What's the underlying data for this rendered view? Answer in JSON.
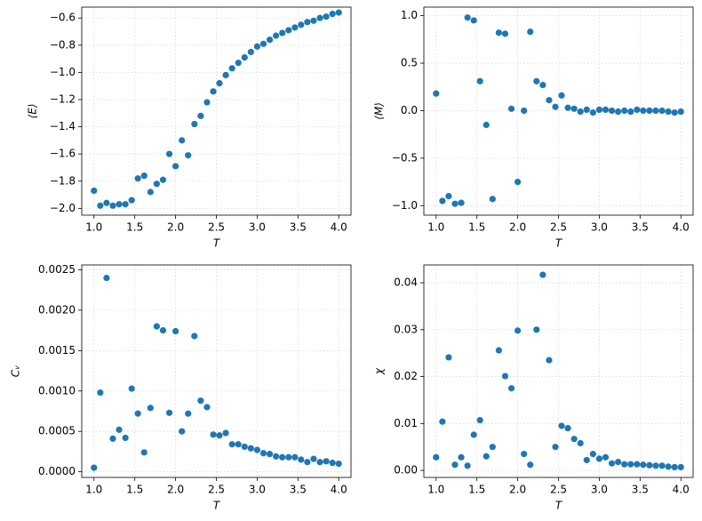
{
  "chart_data": [
    {
      "type": "scatter",
      "xlabel": "T",
      "ylabel": "⟨E⟩",
      "color": "#1f77b4",
      "grid": true,
      "x": [
        1.0,
        1.077,
        1.154,
        1.231,
        1.308,
        1.385,
        1.462,
        1.538,
        1.615,
        1.692,
        1.769,
        1.846,
        1.923,
        2.0,
        2.077,
        2.154,
        2.231,
        2.308,
        2.385,
        2.462,
        2.538,
        2.615,
        2.692,
        2.769,
        2.846,
        2.923,
        3.0,
        3.077,
        3.154,
        3.231,
        3.308,
        3.385,
        3.462,
        3.538,
        3.615,
        3.692,
        3.769,
        3.846,
        3.923,
        4.0
      ],
      "values": [
        -1.87,
        -1.98,
        -1.96,
        -1.98,
        -1.97,
        -1.97,
        -1.94,
        -1.78,
        -1.76,
        -1.88,
        -1.82,
        -1.79,
        -1.6,
        -1.69,
        -1.5,
        -1.61,
        -1.38,
        -1.32,
        -1.22,
        -1.14,
        -1.08,
        -1.02,
        -0.97,
        -0.93,
        -0.89,
        -0.85,
        -0.81,
        -0.79,
        -0.76,
        -0.73,
        -0.71,
        -0.69,
        -0.67,
        -0.65,
        -0.63,
        -0.62,
        -0.6,
        -0.59,
        -0.57,
        -0.56
      ],
      "xlim": [
        0.85,
        4.15
      ],
      "ylim": [
        -2.05,
        -0.52
      ],
      "xticks": [
        {
          "value": 1.0,
          "label": "1.0"
        },
        {
          "value": 1.5,
          "label": "1.5"
        },
        {
          "value": 2.0,
          "label": "2.0"
        },
        {
          "value": 2.5,
          "label": "2.5"
        },
        {
          "value": 3.0,
          "label": "3.0"
        },
        {
          "value": 3.5,
          "label": "3.5"
        },
        {
          "value": 4.0,
          "label": "4.0"
        }
      ],
      "yticks": [
        {
          "value": -2.0,
          "label": "−2.0"
        },
        {
          "value": -1.8,
          "label": "−1.8"
        },
        {
          "value": -1.6,
          "label": "−1.6"
        },
        {
          "value": -1.4,
          "label": "−1.4"
        },
        {
          "value": -1.2,
          "label": "−1.2"
        },
        {
          "value": -1.0,
          "label": "−1.0"
        },
        {
          "value": -0.8,
          "label": "−0.8"
        },
        {
          "value": -0.6,
          "label": "−0.6"
        }
      ]
    },
    {
      "type": "scatter",
      "xlabel": "T",
      "ylabel": "⟨M⟩",
      "color": "#1f77b4",
      "grid": true,
      "x": [
        1.0,
        1.077,
        1.154,
        1.231,
        1.308,
        1.385,
        1.462,
        1.538,
        1.615,
        1.692,
        1.769,
        1.846,
        1.923,
        2.0,
        2.077,
        2.154,
        2.231,
        2.308,
        2.385,
        2.462,
        2.538,
        2.615,
        2.692,
        2.769,
        2.846,
        2.923,
        3.0,
        3.077,
        3.154,
        3.231,
        3.308,
        3.385,
        3.462,
        3.538,
        3.615,
        3.692,
        3.769,
        3.846,
        3.923,
        4.0
      ],
      "values": [
        0.18,
        -0.95,
        -0.9,
        -0.98,
        -0.97,
        0.98,
        0.95,
        0.31,
        -0.15,
        -0.93,
        0.82,
        0.81,
        0.02,
        -0.75,
        0.0,
        0.83,
        0.31,
        0.27,
        0.11,
        0.04,
        0.16,
        0.03,
        0.02,
        -0.01,
        0.01,
        -0.02,
        0.01,
        0.01,
        0.0,
        -0.01,
        0.0,
        -0.01,
        0.01,
        0.0,
        0.0,
        0.0,
        0.0,
        -0.01,
        -0.02,
        -0.01
      ],
      "xlim": [
        0.85,
        4.15
      ],
      "ylim": [
        -1.1,
        1.09
      ],
      "xticks": [
        {
          "value": 1.0,
          "label": "1.0"
        },
        {
          "value": 1.5,
          "label": "1.5"
        },
        {
          "value": 2.0,
          "label": "2.0"
        },
        {
          "value": 2.5,
          "label": "2.5"
        },
        {
          "value": 3.0,
          "label": "3.0"
        },
        {
          "value": 3.5,
          "label": "3.5"
        },
        {
          "value": 4.0,
          "label": "4.0"
        }
      ],
      "yticks": [
        {
          "value": -1.0,
          "label": "−1.0"
        },
        {
          "value": -0.5,
          "label": "−0.5"
        },
        {
          "value": 0.0,
          "label": "0.0"
        },
        {
          "value": 0.5,
          "label": "0.5"
        },
        {
          "value": 1.0,
          "label": "1.0"
        }
      ]
    },
    {
      "type": "scatter",
      "xlabel": "T",
      "ylabel": "Cᵥ",
      "color": "#1f77b4",
      "grid": true,
      "x": [
        1.0,
        1.077,
        1.154,
        1.231,
        1.308,
        1.385,
        1.462,
        1.538,
        1.615,
        1.692,
        1.769,
        1.846,
        1.923,
        2.0,
        2.077,
        2.154,
        2.231,
        2.308,
        2.385,
        2.462,
        2.538,
        2.615,
        2.692,
        2.769,
        2.846,
        2.923,
        3.0,
        3.077,
        3.154,
        3.231,
        3.308,
        3.385,
        3.462,
        3.538,
        3.615,
        3.692,
        3.769,
        3.846,
        3.923,
        4.0
      ],
      "values": [
        5e-05,
        0.00098,
        0.0024,
        0.00041,
        0.00052,
        0.00042,
        0.00103,
        0.00072,
        0.00024,
        0.00079,
        0.0018,
        0.00175,
        0.00073,
        0.00174,
        0.0005,
        0.00072,
        0.00168,
        0.00088,
        0.0008,
        0.00046,
        0.00045,
        0.00048,
        0.00034,
        0.00034,
        0.00031,
        0.00029,
        0.00027,
        0.00023,
        0.00022,
        0.00019,
        0.00018,
        0.00018,
        0.00018,
        0.00015,
        0.00012,
        0.00016,
        0.00012,
        0.00013,
        0.00011,
        0.0001
      ],
      "xlim": [
        0.85,
        4.15
      ],
      "ylim": [
        -7e-05,
        0.00256
      ],
      "xticks": [
        {
          "value": 1.0,
          "label": "1.0"
        },
        {
          "value": 1.5,
          "label": "1.5"
        },
        {
          "value": 2.0,
          "label": "2.0"
        },
        {
          "value": 2.5,
          "label": "2.5"
        },
        {
          "value": 3.0,
          "label": "3.0"
        },
        {
          "value": 3.5,
          "label": "3.5"
        },
        {
          "value": 4.0,
          "label": "4.0"
        }
      ],
      "yticks": [
        {
          "value": 0,
          "label": "0.0000"
        },
        {
          "value": 0.0005,
          "label": "0.0005"
        },
        {
          "value": 0.001,
          "label": "0.0010"
        },
        {
          "value": 0.0015,
          "label": "0.0015"
        },
        {
          "value": 0.002,
          "label": "0.0020"
        },
        {
          "value": 0.0025,
          "label": "0.0025"
        }
      ]
    },
    {
      "type": "scatter",
      "xlabel": "T",
      "ylabel": "χ",
      "color": "#1f77b4",
      "grid": true,
      "x": [
        1.0,
        1.077,
        1.154,
        1.231,
        1.308,
        1.385,
        1.462,
        1.538,
        1.615,
        1.692,
        1.769,
        1.846,
        1.923,
        2.0,
        2.077,
        2.154,
        2.231,
        2.308,
        2.385,
        2.462,
        2.538,
        2.615,
        2.692,
        2.769,
        2.846,
        2.923,
        3.0,
        3.077,
        3.154,
        3.231,
        3.308,
        3.385,
        3.462,
        3.538,
        3.615,
        3.692,
        3.769,
        3.846,
        3.923,
        4.0
      ],
      "values": [
        0.0028,
        0.0104,
        0.0241,
        0.0012,
        0.0028,
        0.001,
        0.0076,
        0.0107,
        0.003,
        0.005,
        0.0256,
        0.0201,
        0.0175,
        0.0298,
        0.0035,
        0.0012,
        0.03,
        0.0417,
        0.0235,
        0.005,
        0.0095,
        0.009,
        0.0067,
        0.0058,
        0.0022,
        0.0035,
        0.0025,
        0.0028,
        0.0015,
        0.0018,
        0.0013,
        0.0013,
        0.0013,
        0.0012,
        0.0011,
        0.001,
        0.001,
        0.0008,
        0.0007,
        0.0007
      ],
      "xlim": [
        0.85,
        4.15
      ],
      "ylim": [
        -0.0015,
        0.0438
      ],
      "xticks": [
        {
          "value": 1.0,
          "label": "1.0"
        },
        {
          "value": 1.5,
          "label": "1.5"
        },
        {
          "value": 2.0,
          "label": "2.0"
        },
        {
          "value": 2.5,
          "label": "2.5"
        },
        {
          "value": 3.0,
          "label": "3.0"
        },
        {
          "value": 3.5,
          "label": "3.5"
        },
        {
          "value": 4.0,
          "label": "4.0"
        }
      ],
      "yticks": [
        {
          "value": 0,
          "label": "0.00"
        },
        {
          "value": 0.01,
          "label": "0.01"
        },
        {
          "value": 0.02,
          "label": "0.02"
        },
        {
          "value": 0.03,
          "label": "0.03"
        },
        {
          "value": 0.04,
          "label": "0.04"
        }
      ]
    }
  ]
}
